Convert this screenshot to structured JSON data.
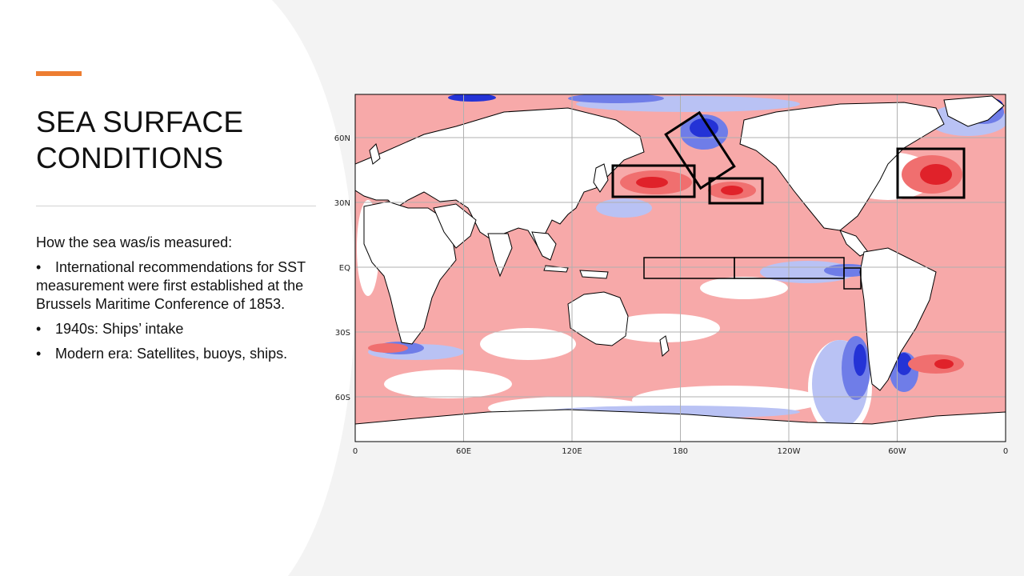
{
  "slide": {
    "title": "SEA SURFACE\nCONDITIONS",
    "accent_color": "#ed7d31",
    "body_intro": "How the sea was/is measured:",
    "bullets": [
      "International recommendations for SST measurement were first established at the Brussels Maritime Conference of 1853.",
      "1940s: Ships’ intake",
      "Modern era: Satellites, buoys, ships."
    ],
    "bullet_symbol": "•"
  },
  "map": {
    "lat_labels": [
      "60N",
      "30N",
      "EQ",
      "30S",
      "60S"
    ],
    "lon_labels": [
      "0",
      "60E",
      "120E",
      "180",
      "120W",
      "60W",
      "0"
    ],
    "colors": {
      "warm_light": "#f7a9a9",
      "warm_mid": "#f06f6f",
      "warm_strong": "#e0222a",
      "cool_light": "#b9c2f4",
      "cool_mid": "#6f7de8",
      "cool_strong": "#2433d6",
      "land": "#ffffff",
      "grid": "#b0b0b0",
      "box": "#000000"
    },
    "region_boxes": [
      "kuroshio-extension-box",
      "bering-sea-box",
      "north-pacific-box",
      "north-atlantic-box",
      "nino4-box",
      "nino3-box",
      "nino1-2-box"
    ]
  }
}
